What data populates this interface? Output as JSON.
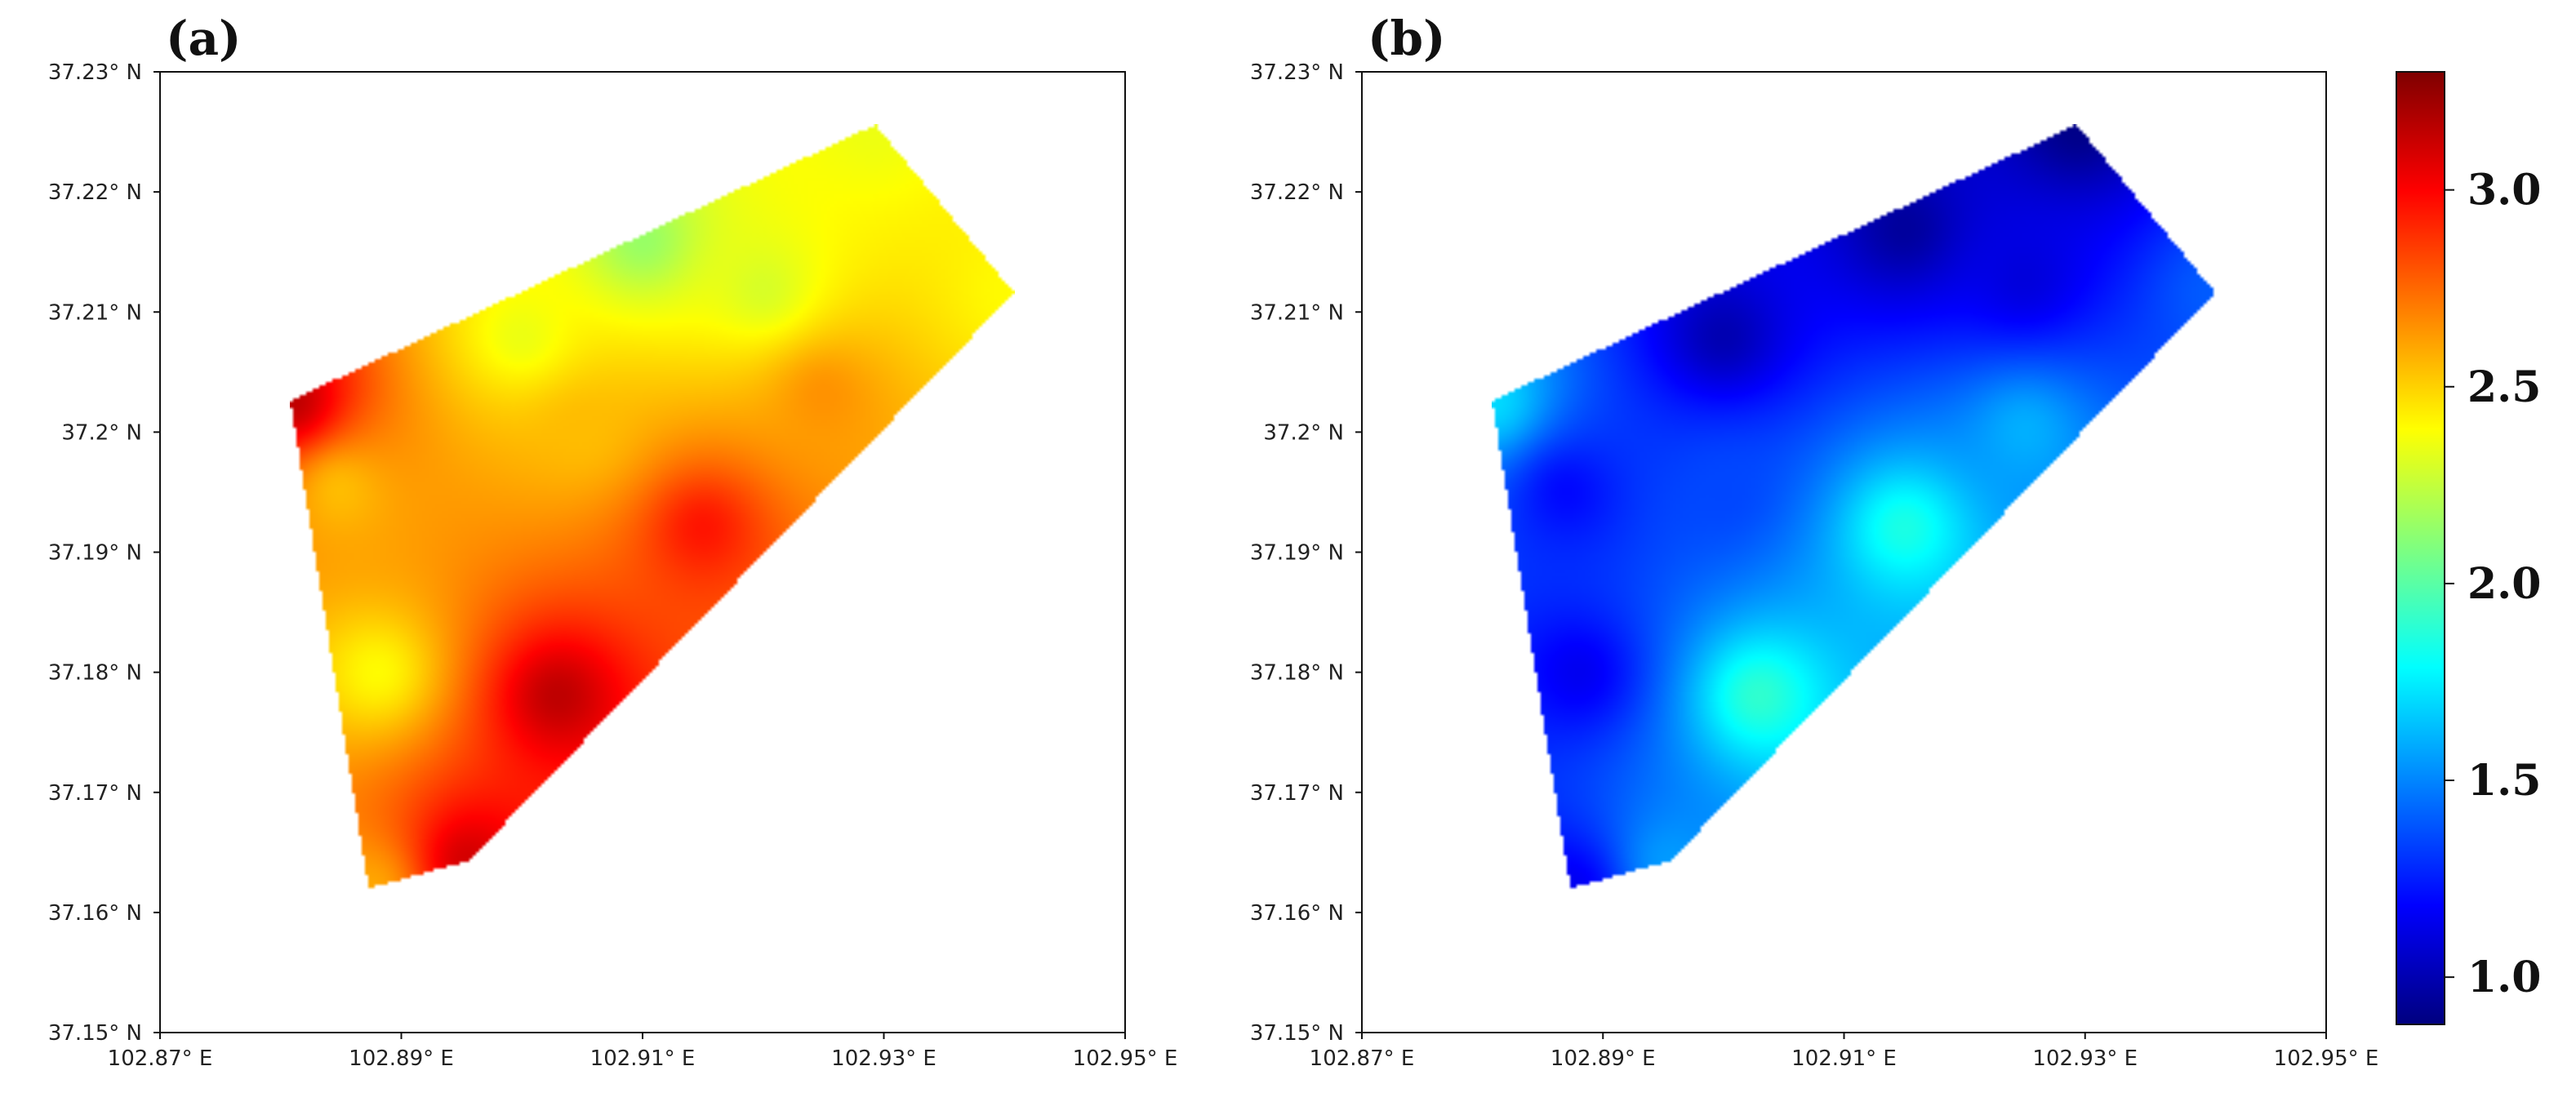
{
  "chart_data": [
    {
      "type": "heatmap",
      "panel_label": "(a)",
      "xlabel": "",
      "ylabel": "",
      "xlim": [
        102.87,
        102.95
      ],
      "ylim": [
        37.15,
        37.23
      ],
      "x_ticks": [
        {
          "value": 102.87,
          "label": "102.87° E"
        },
        {
          "value": 102.89,
          "label": "102.89° E"
        },
        {
          "value": 102.91,
          "label": "102.91° E"
        },
        {
          "value": 102.93,
          "label": "102.93° E"
        },
        {
          "value": 102.95,
          "label": "102.95° E"
        }
      ],
      "y_ticks": [
        {
          "value": 37.15,
          "label": "37.15° N"
        },
        {
          "value": 37.16,
          "label": "37.16° N"
        },
        {
          "value": 37.17,
          "label": "37.17° N"
        },
        {
          "value": 37.18,
          "label": "37.18° N"
        },
        {
          "value": 37.19,
          "label": "37.19° N"
        },
        {
          "value": 37.2,
          "label": "37.2° N"
        },
        {
          "value": 37.21,
          "label": "37.21° N"
        },
        {
          "value": 37.22,
          "label": "37.22° N"
        },
        {
          "value": 37.23,
          "label": "37.23° N"
        }
      ],
      "region_boundary": [
        [
          102.8808,
          37.2026
        ],
        [
          102.9293,
          37.2256
        ],
        [
          102.9408,
          37.2116
        ],
        [
          102.8956,
          37.1643
        ],
        [
          102.8873,
          37.162
        ]
      ],
      "value_field": {
        "type": "idw",
        "anchors": [
          {
            "lon": 102.8808,
            "lat": 37.2026,
            "value": 3.15
          },
          {
            "lon": 102.885,
            "lat": 37.195,
            "value": 2.55
          },
          {
            "lon": 102.888,
            "lat": 37.18,
            "value": 2.4
          },
          {
            "lon": 102.8873,
            "lat": 37.162,
            "value": 2.6
          },
          {
            "lon": 102.8956,
            "lat": 37.1643,
            "value": 3.1
          },
          {
            "lon": 102.903,
            "lat": 37.178,
            "value": 3.15
          },
          {
            "lon": 102.915,
            "lat": 37.192,
            "value": 2.95
          },
          {
            "lon": 102.925,
            "lat": 37.203,
            "value": 2.65
          },
          {
            "lon": 102.905,
            "lat": 37.2,
            "value": 2.55
          },
          {
            "lon": 102.9,
            "lat": 37.208,
            "value": 2.35
          },
          {
            "lon": 102.91,
            "lat": 37.216,
            "value": 2.15
          },
          {
            "lon": 102.9293,
            "lat": 37.2256,
            "value": 2.35
          },
          {
            "lon": 102.9408,
            "lat": 37.2116,
            "value": 2.4
          },
          {
            "lon": 102.92,
            "lat": 37.212,
            "value": 2.3
          }
        ]
      }
    },
    {
      "type": "heatmap",
      "panel_label": "(b)",
      "xlabel": "",
      "ylabel": "",
      "xlim": [
        102.87,
        102.95
      ],
      "ylim": [
        37.15,
        37.23
      ],
      "x_ticks": [
        {
          "value": 102.87,
          "label": "102.87° E"
        },
        {
          "value": 102.89,
          "label": "102.89° E"
        },
        {
          "value": 102.91,
          "label": "102.91° E"
        },
        {
          "value": 102.93,
          "label": "102.93° E"
        },
        {
          "value": 102.95,
          "label": "102.95° E"
        }
      ],
      "y_ticks": [
        {
          "value": 37.15,
          "label": "37.15° N"
        },
        {
          "value": 37.16,
          "label": "37.16° N"
        },
        {
          "value": 37.17,
          "label": "37.17° N"
        },
        {
          "value": 37.18,
          "label": "37.18° N"
        },
        {
          "value": 37.19,
          "label": "37.19° N"
        },
        {
          "value": 37.2,
          "label": "37.2° N"
        },
        {
          "value": 37.21,
          "label": "37.21° N"
        },
        {
          "value": 37.22,
          "label": "37.22° N"
        },
        {
          "value": 37.23,
          "label": "37.23° N"
        }
      ],
      "region_boundary": [
        [
          102.8808,
          37.2026
        ],
        [
          102.9293,
          37.2256
        ],
        [
          102.9408,
          37.2116
        ],
        [
          102.8956,
          37.1643
        ],
        [
          102.8873,
          37.162
        ]
      ],
      "value_field": {
        "type": "idw",
        "anchors": [
          {
            "lon": 102.8808,
            "lat": 37.2026,
            "value": 1.7
          },
          {
            "lon": 102.887,
            "lat": 37.195,
            "value": 1.2
          },
          {
            "lon": 102.888,
            "lat": 37.18,
            "value": 1.15
          },
          {
            "lon": 102.8873,
            "lat": 37.162,
            "value": 1.15
          },
          {
            "lon": 102.8956,
            "lat": 37.1643,
            "value": 1.55
          },
          {
            "lon": 102.903,
            "lat": 37.178,
            "value": 1.9
          },
          {
            "lon": 102.915,
            "lat": 37.192,
            "value": 1.85
          },
          {
            "lon": 102.925,
            "lat": 37.2,
            "value": 1.6
          },
          {
            "lon": 102.9,
            "lat": 37.195,
            "value": 1.35
          },
          {
            "lon": 102.9,
            "lat": 37.208,
            "value": 1.0
          },
          {
            "lon": 102.915,
            "lat": 37.217,
            "value": 0.95
          },
          {
            "lon": 102.9293,
            "lat": 37.2256,
            "value": 0.9
          },
          {
            "lon": 102.9408,
            "lat": 37.2116,
            "value": 1.4
          },
          {
            "lon": 102.925,
            "lat": 37.213,
            "value": 1.1
          }
        ]
      }
    }
  ],
  "colorbar": {
    "colormap": "jet",
    "vmin": 0.88,
    "vmax": 3.3,
    "ticks": [
      {
        "value": 1.0,
        "label": "1.0"
      },
      {
        "value": 1.5,
        "label": "1.5"
      },
      {
        "value": 2.0,
        "label": "2.0"
      },
      {
        "value": 2.5,
        "label": "2.5"
      },
      {
        "value": 3.0,
        "label": "3.0"
      }
    ]
  },
  "colors": {
    "jet": [
      "#00007f",
      "#0000ff",
      "#007fff",
      "#00ffff",
      "#7fff7f",
      "#ffff00",
      "#ff7f00",
      "#ff0000",
      "#7f0000"
    ]
  }
}
